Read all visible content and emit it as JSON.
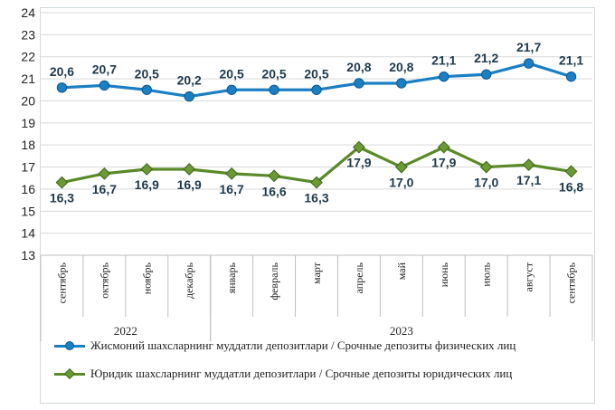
{
  "chart_data": {
    "type": "line",
    "categories": [
      "сентябрь",
      "октябрь",
      "ноябрь",
      "декабрь",
      "январь",
      "февраль",
      "март",
      "апрель",
      "май",
      "июнь",
      "июль",
      "август",
      "сентябрь"
    ],
    "years": [
      {
        "label": "2022",
        "from": 0,
        "to": 3
      },
      {
        "label": "2023",
        "from": 4,
        "to": 12
      }
    ],
    "ylim": [
      13,
      24
    ],
    "yticks": [
      13,
      14,
      15,
      16,
      17,
      18,
      19,
      20,
      21,
      22,
      23,
      24
    ],
    "grid": true,
    "legend_position": "bottom",
    "series": [
      {
        "name": "Жисмоний шахсларнинг муддатли депозитлари / Срочные депозиты физических лиц",
        "color": "#1b7fc4",
        "marker": "circle",
        "values": [
          20.6,
          20.7,
          20.5,
          20.2,
          20.5,
          20.5,
          20.5,
          20.8,
          20.8,
          21.1,
          21.2,
          21.7,
          21.1
        ],
        "labels": [
          "20,6",
          "20,7",
          "20,5",
          "20,2",
          "20,5",
          "20,5",
          "20,5",
          "20,8",
          "20,8",
          "21,1",
          "21,2",
          "21,7",
          "21,1"
        ]
      },
      {
        "name": "Юридик шахсларнинг муддатли депозитлари / Срочные депозиты юридических лиц",
        "color": "#5a8a2a",
        "marker": "diamond",
        "values": [
          16.3,
          16.7,
          16.9,
          16.9,
          16.7,
          16.6,
          16.3,
          17.9,
          17.0,
          17.9,
          17.0,
          17.1,
          16.8
        ],
        "labels": [
          "16,3",
          "16,7",
          "16,9",
          "16,9",
          "16,7",
          "16,6",
          "16,3",
          "17,9",
          "17,0",
          "17,9",
          "17,0",
          "17,1",
          "16,8"
        ]
      }
    ]
  }
}
